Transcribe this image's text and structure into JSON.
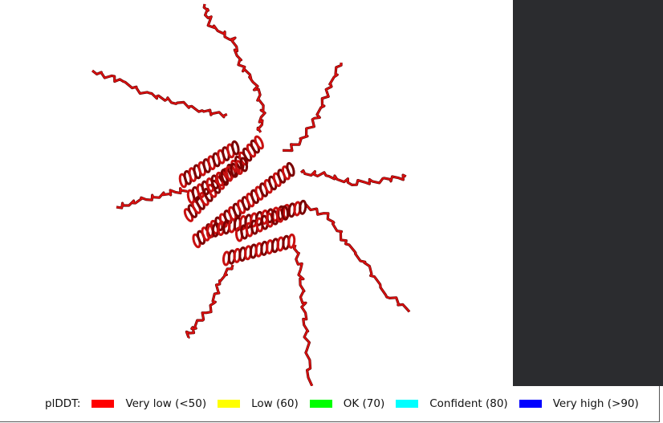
{
  "legend": {
    "title": "plDDT:",
    "items": [
      {
        "label": "Very low (<50)",
        "color": "#ff0000"
      },
      {
        "label": "Low (60)",
        "color": "#ffff00"
      },
      {
        "label": "OK (70)",
        "color": "#00ff00"
      },
      {
        "label": "Confident (80)",
        "color": "#00ffff"
      },
      {
        "label": "Very high (>90)",
        "color": "#0000ff"
      }
    ]
  }
}
